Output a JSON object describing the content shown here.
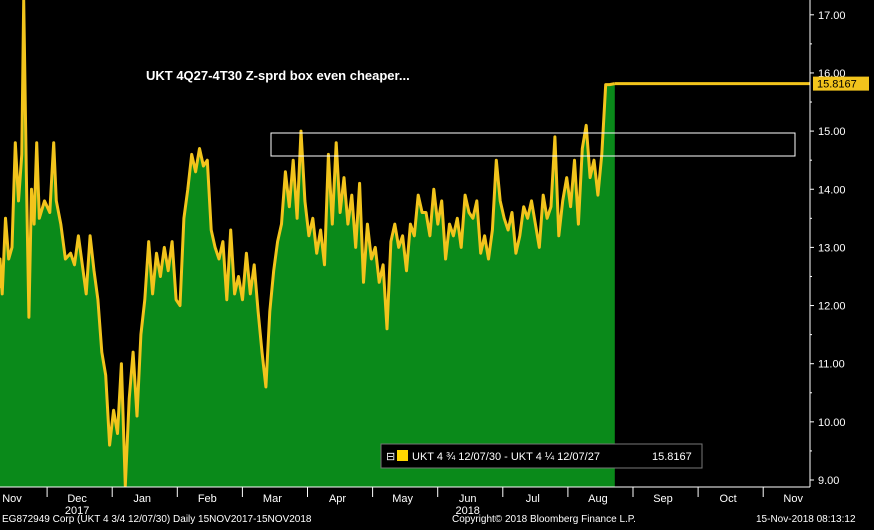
{
  "chart_data": {
    "type": "area",
    "title": "UKT 4Q27-4T30 Z-sprd box even cheaper...",
    "y_ticks": [
      "17.00",
      "16.00",
      "15.00",
      "14.00",
      "13.00",
      "12.00",
      "11.00",
      "10.00",
      "9.00"
    ],
    "ylim": [
      8.9,
      17.25
    ],
    "x_tick_labels": [
      {
        "label": "Nov",
        "sub": "",
        "x": 0
      },
      {
        "label": "Dec",
        "sub": "2017",
        "x": 1
      },
      {
        "label": "Jan",
        "sub": "",
        "x": 2
      },
      {
        "label": "Feb",
        "sub": "",
        "x": 3
      },
      {
        "label": "Mar",
        "sub": "",
        "x": 4
      },
      {
        "label": "Apr",
        "sub": "",
        "x": 5
      },
      {
        "label": "May",
        "sub": "",
        "x": 6
      },
      {
        "label": "Jun",
        "sub": "2018",
        "x": 7
      },
      {
        "label": "Jul",
        "sub": "",
        "x": 8
      },
      {
        "label": "Aug",
        "sub": "",
        "x": 9
      },
      {
        "label": "Sep",
        "sub": "",
        "x": 10
      },
      {
        "label": "Oct",
        "sub": "",
        "x": 11
      },
      {
        "label": "Nov",
        "sub": "",
        "x": 12
      }
    ],
    "xlim": [
      -0.25,
      12.45
    ],
    "series": [
      {
        "name": "UKT 4 ¾ 12/07/30 - UKT 4 ¼ 12/07/27",
        "last_value": "15.8167",
        "points": [
          [
            -0.25,
            12.3
          ],
          [
            -0.2,
            12.8
          ],
          [
            -0.15,
            12.2
          ],
          [
            -0.1,
            13.5
          ],
          [
            -0.05,
            12.8
          ],
          [
            0.0,
            13.0
          ],
          [
            0.05,
            14.8
          ],
          [
            0.1,
            13.8
          ],
          [
            0.15,
            14.6
          ],
          [
            0.18,
            17.25
          ],
          [
            0.22,
            14.3
          ],
          [
            0.26,
            11.8
          ],
          [
            0.3,
            14.0
          ],
          [
            0.34,
            13.4
          ],
          [
            0.38,
            14.8
          ],
          [
            0.42,
            13.5
          ],
          [
            0.5,
            13.8
          ],
          [
            0.58,
            13.6
          ],
          [
            0.64,
            14.8
          ],
          [
            0.68,
            13.8
          ],
          [
            0.75,
            13.4
          ],
          [
            0.82,
            12.8
          ],
          [
            0.9,
            12.9
          ],
          [
            0.96,
            12.7
          ],
          [
            1.02,
            13.2
          ],
          [
            1.08,
            12.7
          ],
          [
            1.14,
            12.2
          ],
          [
            1.2,
            13.2
          ],
          [
            1.26,
            12.6
          ],
          [
            1.32,
            12.1
          ],
          [
            1.38,
            11.2
          ],
          [
            1.44,
            10.8
          ],
          [
            1.5,
            9.6
          ],
          [
            1.56,
            10.2
          ],
          [
            1.62,
            9.8
          ],
          [
            1.68,
            11.0
          ],
          [
            1.74,
            8.9
          ],
          [
            1.8,
            10.4
          ],
          [
            1.86,
            11.2
          ],
          [
            1.92,
            10.1
          ],
          [
            1.98,
            11.5
          ],
          [
            2.04,
            12.1
          ],
          [
            2.1,
            13.1
          ],
          [
            2.16,
            12.2
          ],
          [
            2.22,
            12.9
          ],
          [
            2.28,
            12.5
          ],
          [
            2.34,
            13.0
          ],
          [
            2.4,
            12.6
          ],
          [
            2.46,
            13.1
          ],
          [
            2.52,
            12.1
          ],
          [
            2.58,
            12.0
          ],
          [
            2.64,
            13.5
          ],
          [
            2.7,
            14.0
          ],
          [
            2.76,
            14.6
          ],
          [
            2.82,
            14.3
          ],
          [
            2.88,
            14.7
          ],
          [
            2.94,
            14.4
          ],
          [
            3.0,
            14.5
          ],
          [
            3.06,
            13.3
          ],
          [
            3.12,
            13.0
          ],
          [
            3.18,
            12.8
          ],
          [
            3.24,
            13.1
          ],
          [
            3.3,
            12.1
          ],
          [
            3.36,
            13.3
          ],
          [
            3.42,
            12.2
          ],
          [
            3.48,
            12.5
          ],
          [
            3.54,
            12.1
          ],
          [
            3.6,
            12.9
          ],
          [
            3.66,
            12.2
          ],
          [
            3.72,
            12.7
          ],
          [
            3.78,
            11.9
          ],
          [
            3.84,
            11.2
          ],
          [
            3.9,
            10.6
          ],
          [
            3.96,
            11.9
          ],
          [
            4.02,
            12.6
          ],
          [
            4.08,
            13.1
          ],
          [
            4.14,
            13.4
          ],
          [
            4.2,
            14.3
          ],
          [
            4.26,
            13.7
          ],
          [
            4.32,
            14.5
          ],
          [
            4.38,
            13.5
          ],
          [
            4.44,
            15.0
          ],
          [
            4.5,
            13.8
          ],
          [
            4.56,
            13.2
          ],
          [
            4.62,
            13.5
          ],
          [
            4.68,
            12.9
          ],
          [
            4.74,
            13.3
          ],
          [
            4.8,
            12.7
          ],
          [
            4.86,
            14.6
          ],
          [
            4.92,
            13.4
          ],
          [
            4.98,
            14.8
          ],
          [
            5.04,
            13.6
          ],
          [
            5.1,
            14.2
          ],
          [
            5.16,
            13.4
          ],
          [
            5.22,
            13.9
          ],
          [
            5.28,
            13.0
          ],
          [
            5.34,
            14.1
          ],
          [
            5.4,
            12.4
          ],
          [
            5.46,
            13.4
          ],
          [
            5.52,
            12.8
          ],
          [
            5.58,
            13.0
          ],
          [
            5.64,
            12.4
          ],
          [
            5.7,
            12.7
          ],
          [
            5.76,
            11.6
          ],
          [
            5.82,
            13.1
          ],
          [
            5.88,
            13.4
          ],
          [
            5.94,
            13.0
          ],
          [
            6.0,
            13.2
          ],
          [
            6.06,
            12.6
          ],
          [
            6.12,
            13.4
          ],
          [
            6.18,
            13.2
          ],
          [
            6.24,
            13.9
          ],
          [
            6.3,
            13.6
          ],
          [
            6.36,
            13.6
          ],
          [
            6.42,
            13.2
          ],
          [
            6.48,
            14.0
          ],
          [
            6.54,
            13.4
          ],
          [
            6.6,
            13.8
          ],
          [
            6.66,
            12.8
          ],
          [
            6.72,
            13.4
          ],
          [
            6.78,
            13.2
          ],
          [
            6.84,
            13.5
          ],
          [
            6.9,
            13.0
          ],
          [
            6.96,
            13.9
          ],
          [
            7.02,
            13.6
          ],
          [
            7.08,
            13.5
          ],
          [
            7.14,
            13.8
          ],
          [
            7.2,
            12.9
          ],
          [
            7.26,
            13.2
          ],
          [
            7.32,
            12.8
          ],
          [
            7.38,
            13.3
          ],
          [
            7.44,
            14.5
          ],
          [
            7.5,
            13.8
          ],
          [
            7.56,
            13.5
          ],
          [
            7.62,
            13.3
          ],
          [
            7.68,
            13.6
          ],
          [
            7.74,
            12.9
          ],
          [
            7.8,
            13.2
          ],
          [
            7.86,
            13.7
          ],
          [
            7.92,
            13.5
          ],
          [
            7.98,
            13.8
          ],
          [
            8.04,
            13.4
          ],
          [
            8.1,
            13.0
          ],
          [
            8.16,
            13.9
          ],
          [
            8.22,
            13.5
          ],
          [
            8.28,
            13.7
          ],
          [
            8.34,
            14.9
          ],
          [
            8.4,
            13.2
          ],
          [
            8.46,
            13.8
          ],
          [
            8.52,
            14.2
          ],
          [
            8.58,
            13.7
          ],
          [
            8.64,
            14.5
          ],
          [
            8.7,
            13.4
          ],
          [
            8.76,
            14.7
          ],
          [
            8.82,
            15.1
          ],
          [
            8.88,
            14.2
          ],
          [
            8.94,
            14.5
          ],
          [
            9.0,
            13.9
          ],
          [
            9.06,
            14.6
          ],
          [
            9.12,
            15.8
          ],
          [
            9.18,
            15.8
          ],
          [
            9.26,
            15.8167
          ]
        ]
      }
    ]
  },
  "legend": {
    "expand_glyph": "⊟",
    "label": "UKT 4 ¾ 12/07/30 - UKT 4 ¼ 12/07/27",
    "value": "15.8167",
    "color": "#ffd700"
  },
  "footer": {
    "left": "EG872949 Corp (UKT 4 3/4 12/07/30)  Daily 15NOV2017-15NOV2018",
    "middle": "Copyright© 2018 Bloomberg Finance L.P.",
    "right": "15-Nov-2018 08:13:12"
  },
  "colors": {
    "background": "#000000",
    "area_fill": "#0a8a1a",
    "line": "#f2c41c",
    "axis": "#ffffff",
    "last_value_box": "#f2c41c"
  }
}
